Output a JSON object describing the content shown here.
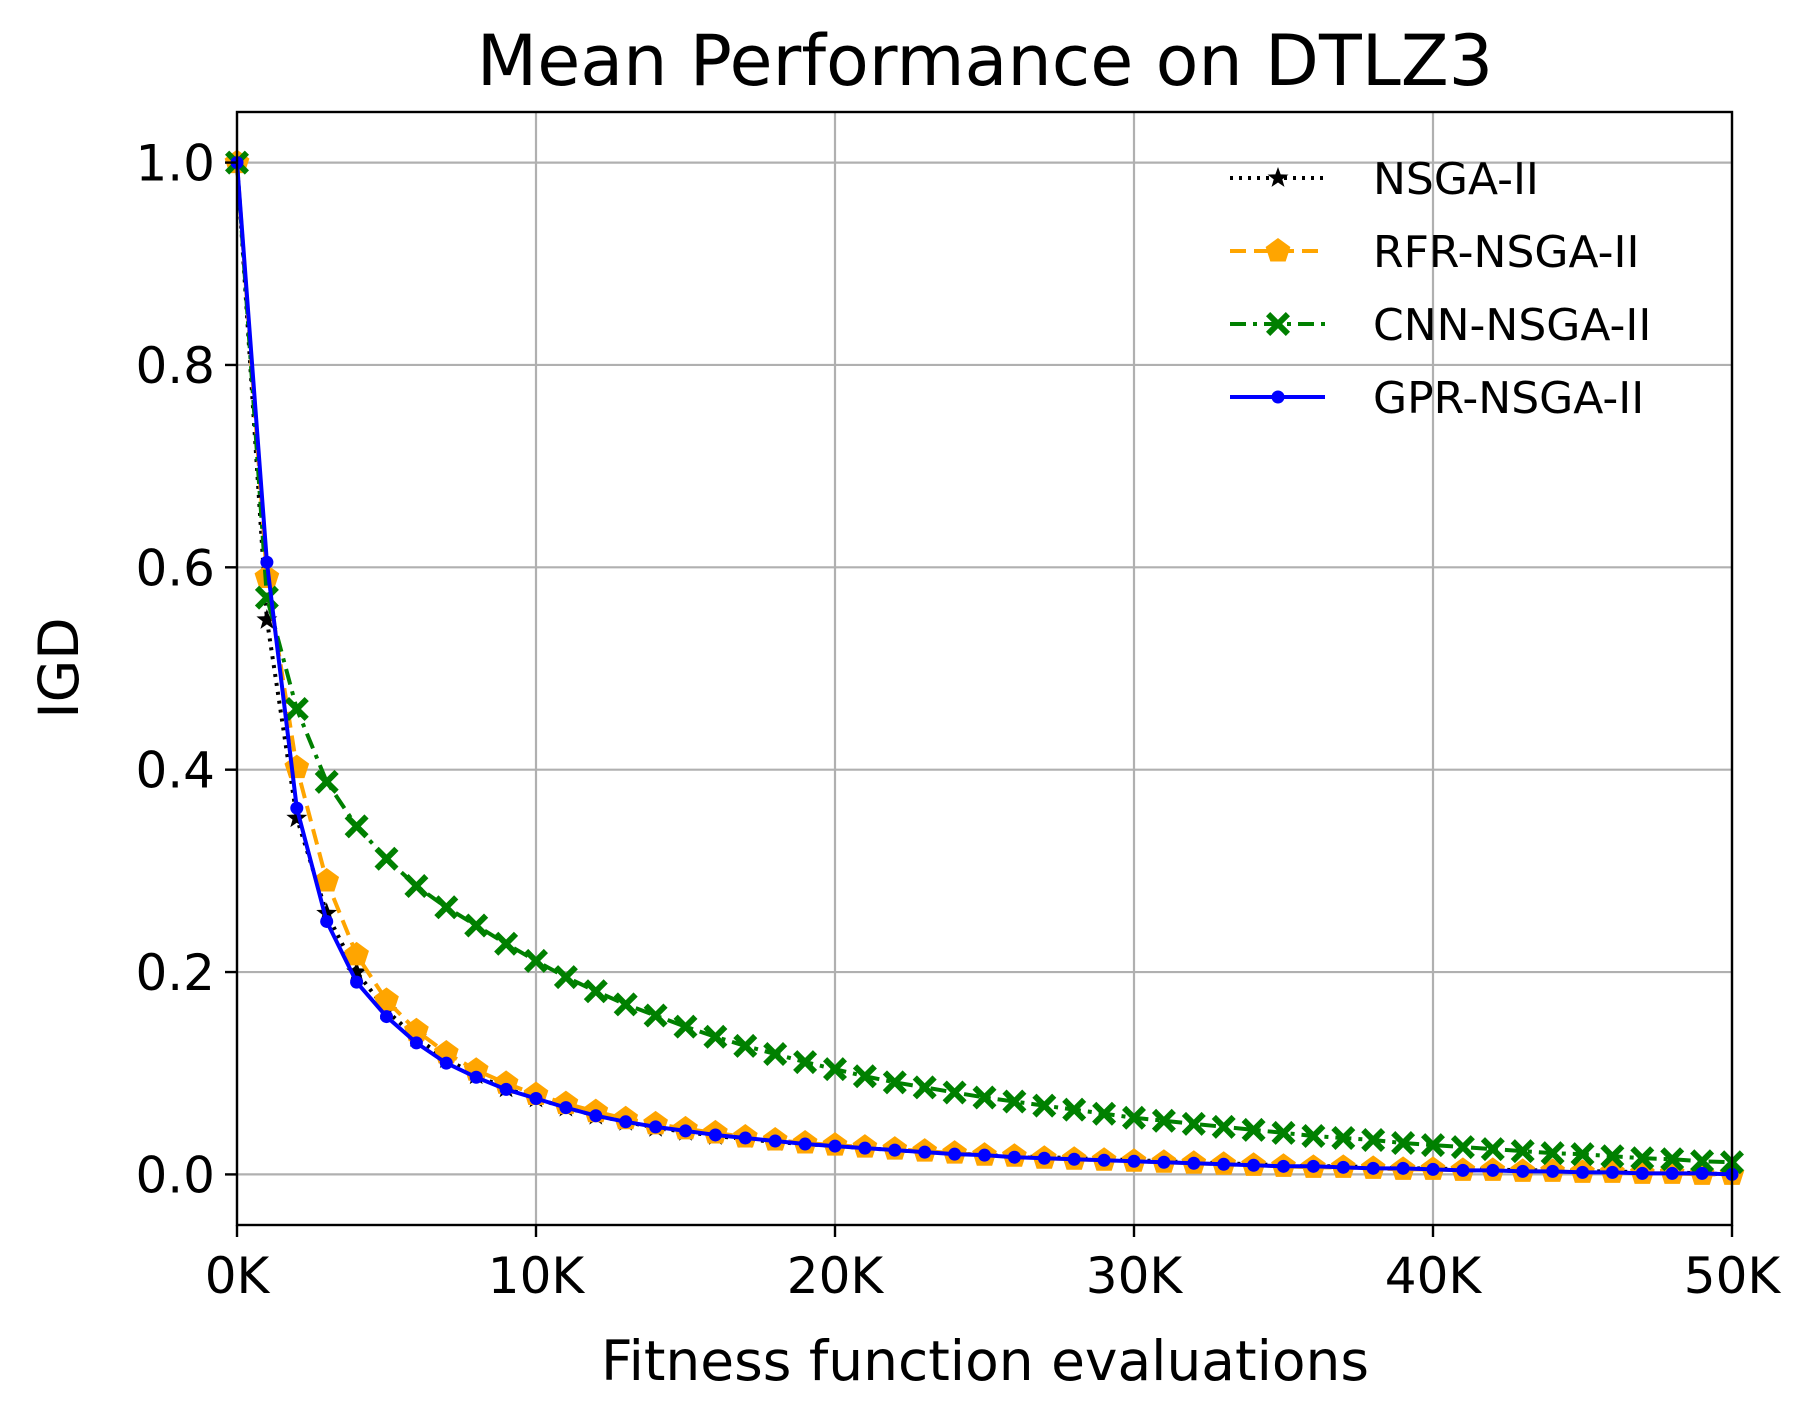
{
  "chart_data": {
    "type": "line",
    "title": "Mean Performance on DTLZ3",
    "xlabel": "Fitness function evaluations",
    "ylabel": "IGD",
    "xlim": [
      0,
      50000
    ],
    "ylim": [
      -0.05,
      1.05
    ],
    "x_ticks": [
      {
        "value": 0,
        "label": "0K"
      },
      {
        "value": 10000,
        "label": "10K"
      },
      {
        "value": 20000,
        "label": "20K"
      },
      {
        "value": 30000,
        "label": "30K"
      },
      {
        "value": 40000,
        "label": "40K"
      },
      {
        "value": 50000,
        "label": "50K"
      }
    ],
    "y_ticks": [
      {
        "value": 0.0,
        "label": "0.0"
      },
      {
        "value": 0.2,
        "label": "0.2"
      },
      {
        "value": 0.4,
        "label": "0.4"
      },
      {
        "value": 0.6,
        "label": "0.6"
      },
      {
        "value": 0.8,
        "label": "0.8"
      },
      {
        "value": 1.0,
        "label": "1.0"
      }
    ],
    "grid": true,
    "legend_position": "top-right",
    "x": [
      0,
      1000,
      2000,
      3000,
      4000,
      5000,
      6000,
      7000,
      8000,
      9000,
      10000,
      11000,
      12000,
      13000,
      14000,
      15000,
      16000,
      17000,
      18000,
      19000,
      20000,
      21000,
      22000,
      23000,
      24000,
      25000,
      26000,
      27000,
      28000,
      29000,
      30000,
      31000,
      32000,
      33000,
      34000,
      35000,
      36000,
      37000,
      38000,
      39000,
      40000,
      41000,
      42000,
      43000,
      44000,
      45000,
      46000,
      47000,
      48000,
      49000,
      50000
    ],
    "series": [
      {
        "name": "NSGA-II",
        "color": "#000000",
        "line_style": "dotted",
        "marker": "star",
        "values": [
          1.0,
          0.548,
          0.352,
          0.258,
          0.2,
          0.162,
          0.135,
          0.114,
          0.098,
          0.085,
          0.075,
          0.066,
          0.058,
          0.052,
          0.046,
          0.042,
          0.038,
          0.035,
          0.032,
          0.03,
          0.028,
          0.026,
          0.024,
          0.022,
          0.021,
          0.019,
          0.018,
          0.017,
          0.016,
          0.015,
          0.014,
          0.013,
          0.012,
          0.011,
          0.01,
          0.009,
          0.008,
          0.008,
          0.007,
          0.006,
          0.006,
          0.005,
          0.005,
          0.004,
          0.004,
          0.003,
          0.003,
          0.002,
          0.002,
          0.001,
          0.0
        ]
      },
      {
        "name": "RFR-NSGA-II",
        "color": "#ffa500",
        "line_style": "dashed",
        "marker": "pentagon",
        "values": [
          1.0,
          0.59,
          0.402,
          0.29,
          0.217,
          0.172,
          0.142,
          0.12,
          0.103,
          0.09,
          0.079,
          0.07,
          0.062,
          0.055,
          0.05,
          0.045,
          0.041,
          0.037,
          0.034,
          0.031,
          0.029,
          0.027,
          0.025,
          0.023,
          0.021,
          0.019,
          0.018,
          0.016,
          0.015,
          0.014,
          0.013,
          0.012,
          0.011,
          0.01,
          0.009,
          0.008,
          0.007,
          0.007,
          0.006,
          0.005,
          0.005,
          0.004,
          0.004,
          0.003,
          0.003,
          0.002,
          0.002,
          0.001,
          0.001,
          0.0,
          0.0
        ]
      },
      {
        "name": "CNN-NSGA-II",
        "color": "#008000",
        "line_style": "dashdot",
        "marker": "x-filled",
        "values": [
          1.0,
          0.57,
          0.46,
          0.388,
          0.344,
          0.312,
          0.285,
          0.264,
          0.246,
          0.228,
          0.211,
          0.195,
          0.181,
          0.168,
          0.157,
          0.146,
          0.136,
          0.127,
          0.119,
          0.111,
          0.104,
          0.097,
          0.091,
          0.086,
          0.081,
          0.076,
          0.072,
          0.068,
          0.064,
          0.06,
          0.056,
          0.053,
          0.05,
          0.047,
          0.044,
          0.041,
          0.038,
          0.036,
          0.034,
          0.031,
          0.029,
          0.027,
          0.025,
          0.023,
          0.021,
          0.02,
          0.018,
          0.016,
          0.015,
          0.013,
          0.012
        ]
      },
      {
        "name": "GPR-NSGA-II",
        "color": "#0000ff",
        "line_style": "solid",
        "marker": "dot",
        "values": [
          1.0,
          0.605,
          0.362,
          0.25,
          0.19,
          0.156,
          0.13,
          0.11,
          0.096,
          0.084,
          0.075,
          0.066,
          0.058,
          0.052,
          0.047,
          0.043,
          0.039,
          0.036,
          0.033,
          0.03,
          0.028,
          0.026,
          0.024,
          0.022,
          0.02,
          0.019,
          0.017,
          0.016,
          0.015,
          0.014,
          0.013,
          0.012,
          0.011,
          0.01,
          0.009,
          0.008,
          0.008,
          0.007,
          0.006,
          0.006,
          0.005,
          0.004,
          0.004,
          0.003,
          0.003,
          0.002,
          0.002,
          0.001,
          0.001,
          0.001,
          0.0
        ]
      }
    ]
  }
}
